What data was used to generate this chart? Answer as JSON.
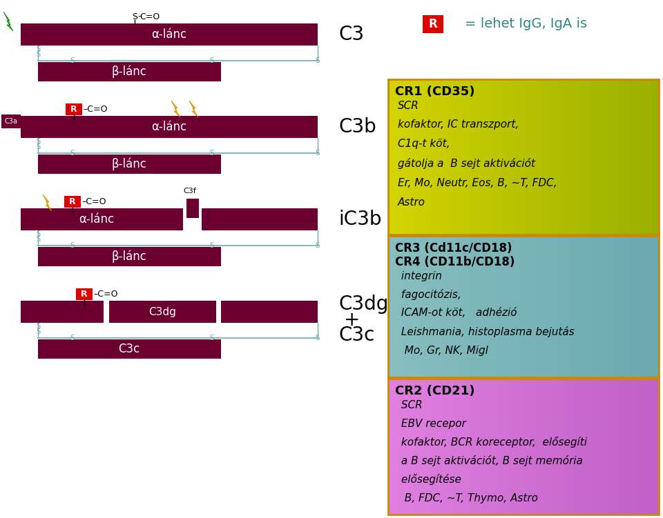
{
  "bg_color": "#ffffff",
  "dark_red": "#6B0030",
  "red_box": "#dd0000",
  "teal_line": "#6aabab",
  "cr1_title": "CR1 (CD35)",
  "cr1_lines": [
    "SCR",
    "kofaktor, IC transzport,",
    "C1q-t köt,",
    "gátolja a  B sejt aktivációt",
    "Er, Mo, Neutr, Eos, B, ~T, FDC,",
    "Astro"
  ],
  "cr34_line1": "CR3 (Cd11c/CD18)",
  "cr34_line2": "CR4 (CD11b/CD18)",
  "cr34_lines": [
    " integrin",
    " fagocitózis,",
    " ICAM-ot köt,   adhézió",
    " Leishmania, histoplasma bejutás",
    "  Mo, Gr, NK, Migl"
  ],
  "cr2_title": "CR2 (CD21)",
  "cr2_lines": [
    " SCR",
    " EBV recepor",
    " kofaktor, BCR koreceptor,  elősegíti",
    " a B sejt aktivációt, B sejt memória",
    " elősegítése",
    "  B, FDC, ~T, Thymo, Astro"
  ],
  "legend_text": "= lehet IgG, IgA is",
  "cr1_bg": "#c8c800",
  "cr34_bg": "#7ab8b8",
  "cr2_bg": "#d878d8",
  "border_color": "#cc8800"
}
